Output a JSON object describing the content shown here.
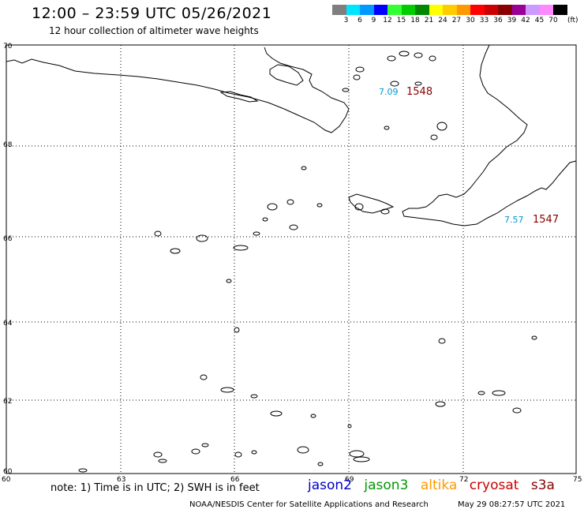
{
  "title": "12:00 – 23:59 UTC 05/26/2021",
  "subtitle": "12 hour collection of altimeter wave heights",
  "legend": {
    "unit": "(ft)",
    "bins": [
      {
        "label": "3",
        "color": "#7f7f7f"
      },
      {
        "label": "6",
        "color": "#00e5ff"
      },
      {
        "label": "9",
        "color": "#0099ff"
      },
      {
        "label": "12",
        "color": "#0000ff"
      },
      {
        "label": "15",
        "color": "#33ff33"
      },
      {
        "label": "18",
        "color": "#00cc00"
      },
      {
        "label": "21",
        "color": "#008800"
      },
      {
        "label": "24",
        "color": "#ffff00"
      },
      {
        "label": "27",
        "color": "#ffcc00"
      },
      {
        "label": "30",
        "color": "#ff9900"
      },
      {
        "label": "33",
        "color": "#ff0000"
      },
      {
        "label": "36",
        "color": "#cc0000"
      },
      {
        "label": "39",
        "color": "#880000"
      },
      {
        "label": "42",
        "color": "#990099"
      },
      {
        "label": "45",
        "color": "#cc99ff"
      },
      {
        "label": "70",
        "color": "#ff88ff"
      },
      {
        "label": "",
        "color": "#000000"
      }
    ]
  },
  "latitudes": [
    "70",
    "68",
    "66",
    "64",
    "62",
    "60"
  ],
  "longitudes": [
    "60",
    "63",
    "66",
    "69",
    "72",
    "75"
  ],
  "passes": [
    {
      "swh": "7.09",
      "swh_color": "#0099cc",
      "pass_id": "1548",
      "pass_color": "#880000"
    },
    {
      "swh": "7.57",
      "swh_color": "#0099cc",
      "pass_id": "1547",
      "pass_color": "#880000"
    }
  ],
  "note": "note: 1) Time is in UTC; 2) SWH is in feet",
  "missions": [
    {
      "name": "jason2",
      "color": "#0000cc"
    },
    {
      "name": "jason3",
      "color": "#009900"
    },
    {
      "name": "altika",
      "color": "#ff9900"
    },
    {
      "name": "cryosat",
      "color": "#cc0000"
    },
    {
      "name": "s3a",
      "color": "#880000"
    }
  ],
  "footer": {
    "center": "NOAA/NESDIS Center for Satellite Applications and Research",
    "timestamp": "May 29 08:27:57 UTC 2021"
  }
}
